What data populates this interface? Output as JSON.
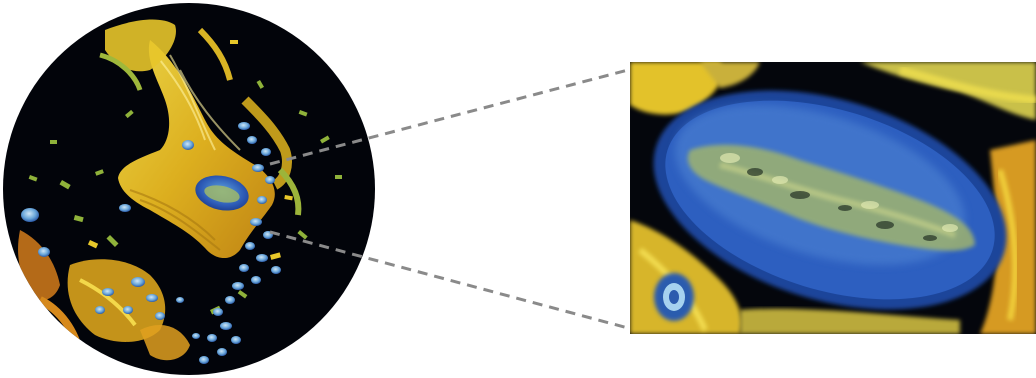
{
  "figure": {
    "panels": [
      "circular-micrograph",
      "zoomed-inset"
    ],
    "stain_colors": {
      "background": "#02040a",
      "collagen_yellow": "#f2d21a",
      "collagen_orange": "#d98a16",
      "collagen_green": "#9cb43a",
      "cell_blue": "#2e5fb8",
      "cell_light_blue": "#7fb6e0"
    },
    "connector_color": "#8a8a8a",
    "connector_style": "dashed"
  }
}
